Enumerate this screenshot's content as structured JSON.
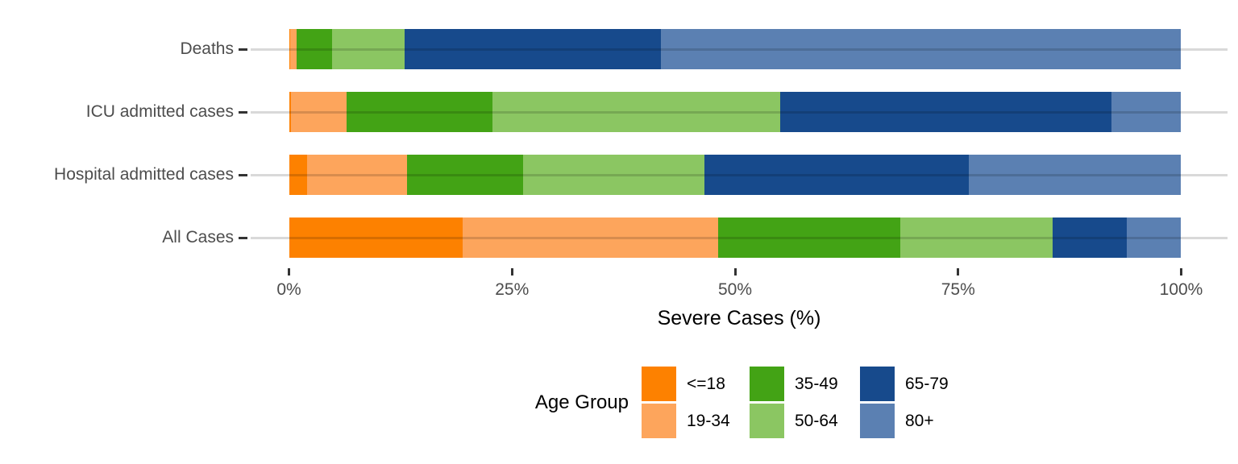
{
  "chart_data": {
    "type": "bar",
    "orientation": "horizontal",
    "stacked": true,
    "xlabel": "Severe Cases (%)",
    "ylabel": "",
    "xlim": [
      0,
      100
    ],
    "x_tick_values": [
      0,
      25,
      50,
      75,
      100
    ],
    "x_tick_labels": [
      "0%",
      "25%",
      "50%",
      "75%",
      "100%"
    ],
    "grid": "horizontal major gridlines only",
    "legend_position": "bottom",
    "legend_title": "Age Group",
    "categories": [
      "Deaths",
      "ICU admitted cases",
      "Hospital admitted cases",
      "All Cases"
    ],
    "series": [
      {
        "name": "<=18",
        "color": "#fd8100",
        "values": [
          0.1,
          0.2,
          2.0,
          19.5
        ]
      },
      {
        "name": "19-34",
        "color": "#fda55c",
        "values": [
          0.8,
          6.3,
          11.2,
          28.6
        ]
      },
      {
        "name": "35-49",
        "color": "#43a315",
        "values": [
          3.9,
          16.3,
          13.0,
          20.4
        ]
      },
      {
        "name": "50-64",
        "color": "#8bc662",
        "values": [
          8.2,
          32.3,
          20.4,
          17.1
        ]
      },
      {
        "name": "65-79",
        "color": "#174a8c",
        "values": [
          28.7,
          37.1,
          29.6,
          8.3
        ]
      },
      {
        "name": "80+",
        "color": "#5b80b2",
        "values": [
          58.3,
          7.8,
          23.8,
          6.1
        ]
      }
    ],
    "colors": {
      "grid_line": "#d9d9d9",
      "axis_tick": "#333333",
      "axis_text": "#4d4d4d",
      "title_text": "#000000"
    }
  }
}
